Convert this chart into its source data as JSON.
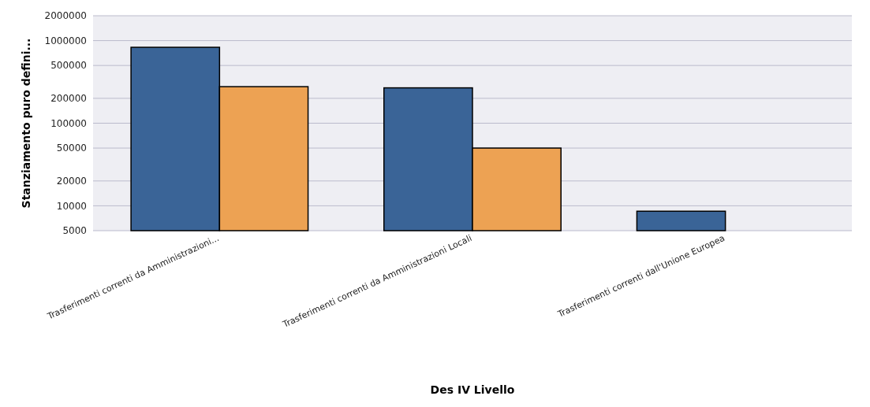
{
  "chart_data": {
    "type": "bar",
    "xlabel": "Des IV Livello",
    "ylabel": "Stanziamento puro defini...",
    "categories": [
      "Trasferimenti correnti da Amministrazioni...",
      "Trasferimenti correnti da Amministrazioni Locali",
      "Trasferimenti correnti dall'Unione Europea"
    ],
    "series": [
      {
        "color": "#3a6497",
        "values": [
          830000,
          268000,
          8600
        ]
      },
      {
        "color": "#eda253",
        "values": [
          277000,
          50000,
          null
        ]
      }
    ],
    "log": true,
    "ylim": [
      5000,
      2000000
    ],
    "yticks": [
      5000,
      10000,
      20000,
      50000,
      100000,
      200000,
      500000,
      1000000,
      2000000
    ],
    "grid": "y"
  }
}
